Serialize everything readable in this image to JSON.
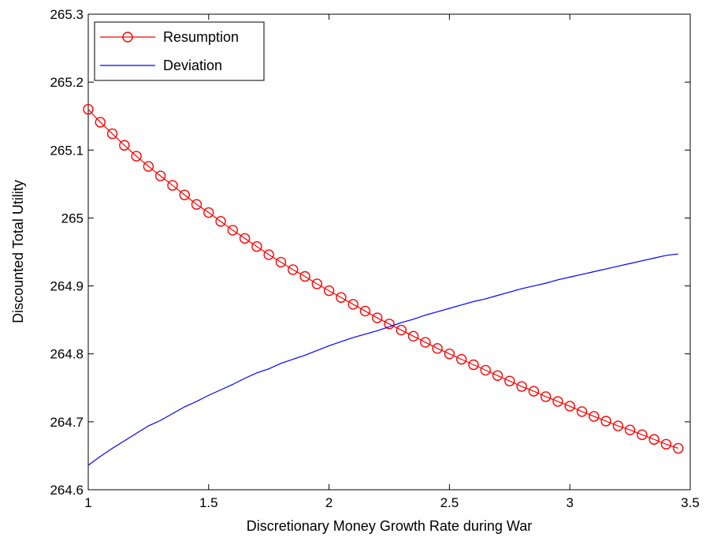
{
  "chart_data": {
    "type": "line",
    "title": "",
    "xlabel": "Discretionary Money Growth Rate during War",
    "ylabel": "Discounted Total Utility",
    "xlim": [
      1,
      3.5
    ],
    "ylim": [
      264.6,
      265.3
    ],
    "xticks": [
      "1",
      "1.5",
      "2",
      "2.5",
      "3",
      "3.5"
    ],
    "yticks": [
      "264.6",
      "264.7",
      "264.8",
      "264.9",
      "265",
      "265.1",
      "265.2",
      "265.3"
    ],
    "grid": false,
    "legend_position": "top-left",
    "series": [
      {
        "name": "Resumption",
        "color": "#ff0000",
        "marker": "circle",
        "x": [
          1.0,
          1.05,
          1.1,
          1.15,
          1.2,
          1.25,
          1.3,
          1.35,
          1.4,
          1.45,
          1.5,
          1.55,
          1.6,
          1.65,
          1.7,
          1.75,
          1.8,
          1.85,
          1.9,
          1.95,
          2.0,
          2.05,
          2.1,
          2.15,
          2.2,
          2.25,
          2.3,
          2.35,
          2.4,
          2.45,
          2.5,
          2.55,
          2.6,
          2.65,
          2.7,
          2.75,
          2.8,
          2.85,
          2.9,
          2.95,
          3.0,
          3.05,
          3.1,
          3.15,
          3.2,
          3.25,
          3.3,
          3.35,
          3.4,
          3.45
        ],
        "values": [
          265.16,
          265.141,
          265.124,
          265.107,
          265.091,
          265.076,
          265.062,
          265.048,
          265.034,
          265.02,
          265.008,
          264.995,
          264.982,
          264.97,
          264.958,
          264.946,
          264.935,
          264.924,
          264.914,
          264.903,
          264.893,
          264.883,
          264.873,
          264.863,
          264.853,
          264.844,
          264.835,
          264.826,
          264.817,
          264.808,
          264.8,
          264.792,
          264.784,
          264.776,
          264.768,
          264.76,
          264.752,
          264.745,
          264.737,
          264.73,
          264.723,
          264.715,
          264.708,
          264.701,
          264.694,
          264.688,
          264.681,
          264.674,
          264.667,
          264.661
        ]
      },
      {
        "name": "Deviation",
        "color": "#0000ff",
        "marker": "none",
        "x": [
          1.0,
          1.05,
          1.1,
          1.15,
          1.2,
          1.25,
          1.3,
          1.35,
          1.4,
          1.45,
          1.5,
          1.55,
          1.6,
          1.65,
          1.7,
          1.75,
          1.8,
          1.85,
          1.9,
          1.95,
          2.0,
          2.05,
          2.1,
          2.15,
          2.2,
          2.25,
          2.3,
          2.35,
          2.4,
          2.45,
          2.5,
          2.55,
          2.6,
          2.65,
          2.7,
          2.75,
          2.8,
          2.85,
          2.9,
          2.95,
          3.0,
          3.05,
          3.1,
          3.15,
          3.2,
          3.25,
          3.3,
          3.35,
          3.4,
          3.45
        ],
        "values": [
          264.636,
          264.649,
          264.661,
          264.672,
          264.683,
          264.694,
          264.702,
          264.712,
          264.722,
          264.73,
          264.739,
          264.747,
          264.755,
          264.764,
          264.772,
          264.778,
          264.786,
          264.792,
          264.798,
          264.805,
          264.812,
          264.818,
          264.824,
          264.829,
          264.834,
          264.84,
          264.846,
          264.851,
          264.857,
          264.862,
          264.867,
          264.872,
          264.877,
          264.881,
          264.886,
          264.891,
          264.896,
          264.9,
          264.904,
          264.909,
          264.913,
          264.917,
          264.921,
          264.925,
          264.929,
          264.933,
          264.937,
          264.941,
          264.945,
          264.947
        ]
      }
    ]
  }
}
